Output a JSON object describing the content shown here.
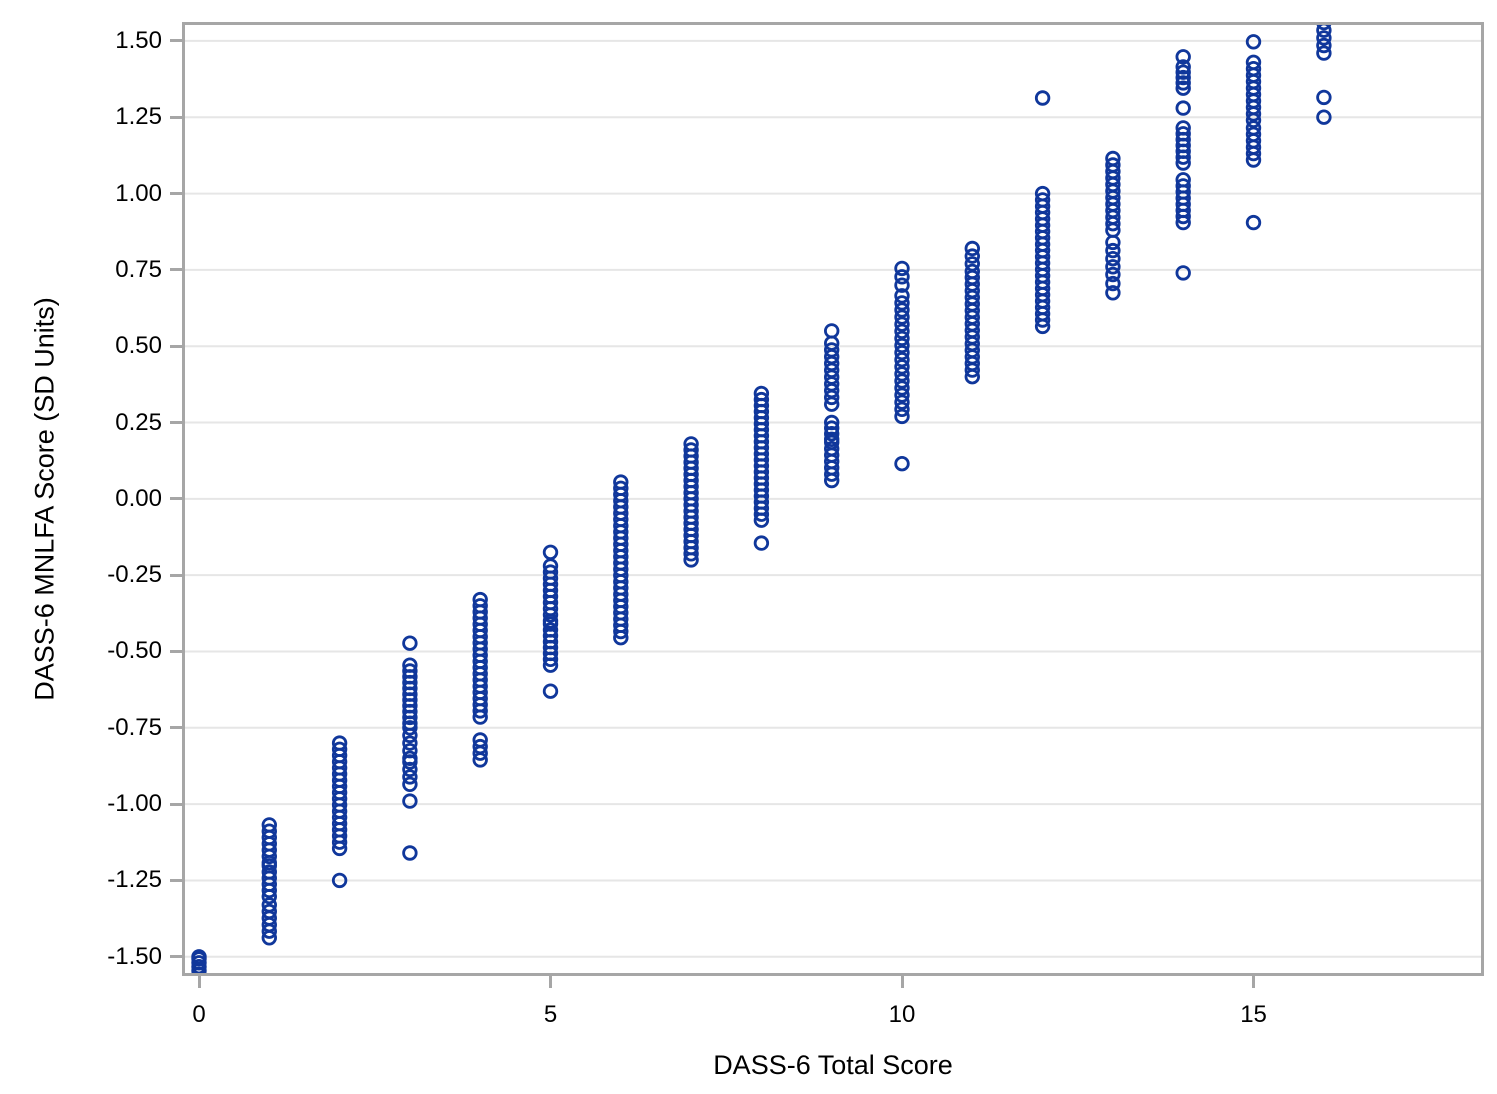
{
  "chart_data": {
    "type": "scatter",
    "title": "",
    "xlabel": "DASS-6 Total Score",
    "ylabel": "DASS-6 MNLFA Score (SD Units)",
    "xlim": [
      -0.242,
      18.278
    ],
    "ylim": [
      -1.563,
      1.562
    ],
    "x_ticks": [
      0,
      5,
      10,
      15
    ],
    "x_tick_labels": [
      "0",
      "5",
      "10",
      "15"
    ],
    "y_ticks": [
      1.5,
      1.25,
      1.0,
      0.75,
      0.5,
      0.25,
      0.0,
      -0.25,
      -0.5,
      -0.75,
      -1.0,
      -1.25,
      -1.5
    ],
    "y_tick_labels": [
      "1.50",
      "1.25",
      "1.00",
      "0.75",
      "0.50",
      "0.25",
      "0.00",
      "-0.25",
      "-0.50",
      "-0.75",
      "-1.00",
      "-1.25",
      "-1.50"
    ],
    "grid": "horizontal-only",
    "legend": "none",
    "marker": {
      "shape": "open-circle",
      "color": "#10379B",
      "radius_px": 6.3,
      "stroke_px": 2.8
    },
    "panel": {
      "background": "#FFFFFF",
      "grid_color": "#E6E6E6",
      "border_color": "#A6A6A6",
      "tick_color": "#A6A6A6"
    },
    "series_note": "Columns of overlapping open circles at each integer DASS-6 total score; clusters are [vTop, vBottom, count] ranges of MNLFA scores (SD units), points are isolated values.",
    "series": [
      {
        "x": 0,
        "points": [
          -1.5
        ],
        "clusters": [
          [
            -1.507,
            -1.558,
            5
          ]
        ]
      },
      {
        "x": 1,
        "points": [],
        "clusters": [
          [
            -1.068,
            -1.192,
            7
          ],
          [
            -1.202,
            -1.303,
            6
          ],
          [
            -1.33,
            -1.438,
            6
          ]
        ]
      },
      {
        "x": 2,
        "points": [
          -1.25
        ],
        "clusters": [
          [
            -0.8,
            -1.145,
            18
          ]
        ]
      },
      {
        "x": 3,
        "points": [
          -0.473,
          -0.99,
          -1.16
        ],
        "clusters": [
          [
            -0.545,
            -0.735,
            11
          ],
          [
            -0.75,
            -0.85,
            5
          ],
          [
            -0.862,
            -0.935,
            4
          ]
        ]
      },
      {
        "x": 4,
        "points": [],
        "clusters": [
          [
            -0.33,
            -0.715,
            20
          ],
          [
            -0.79,
            -0.855,
            4
          ]
        ]
      },
      {
        "x": 5,
        "points": [
          -0.175,
          -0.63
        ],
        "clusters": [
          [
            -0.22,
            -0.4,
            10
          ],
          [
            -0.41,
            -0.545,
            8
          ]
        ]
      },
      {
        "x": 6,
        "points": [],
        "clusters": [
          [
            0.055,
            -0.455,
            26
          ]
        ]
      },
      {
        "x": 7,
        "points": [],
        "clusters": [
          [
            0.18,
            -0.2,
            20
          ]
        ]
      },
      {
        "x": 8,
        "points": [
          -0.145
        ],
        "clusters": [
          [
            0.345,
            -0.07,
            22
          ]
        ]
      },
      {
        "x": 9,
        "points": [
          0.55
        ],
        "clusters": [
          [
            0.51,
            0.31,
            10
          ],
          [
            0.25,
            0.195,
            4
          ],
          [
            0.185,
            0.06,
            7
          ]
        ]
      },
      {
        "x": 10,
        "points": [
          0.115
        ],
        "clusters": [
          [
            0.755,
            0.7,
            3
          ],
          [
            0.665,
            0.27,
            18
          ]
        ]
      },
      {
        "x": 11,
        "points": [],
        "clusters": [
          [
            0.82,
            0.745,
            4
          ],
          [
            0.725,
            0.4,
            16
          ]
        ]
      },
      {
        "x": 12,
        "points": [
          1.313
        ],
        "clusters": [
          [
            1.0,
            0.565,
            22
          ]
        ]
      },
      {
        "x": 13,
        "points": [],
        "clusters": [
          [
            1.115,
            0.88,
            12
          ],
          [
            0.84,
            0.76,
            4
          ],
          [
            0.735,
            0.675,
            3
          ]
        ]
      },
      {
        "x": 14,
        "points": [
          1.448,
          1.28,
          0.74
        ],
        "clusters": [
          [
            1.415,
            1.345,
            5
          ],
          [
            1.215,
            1.1,
            7
          ],
          [
            1.045,
            0.905,
            8
          ]
        ]
      },
      {
        "x": 15,
        "points": [
          1.497,
          0.905
        ],
        "clusters": [
          [
            1.43,
            1.24,
            10
          ],
          [
            1.215,
            1.11,
            6
          ]
        ]
      },
      {
        "x": 16,
        "points": [
          1.315,
          1.25
        ],
        "clusters": [
          [
            1.56,
            1.46,
            5
          ]
        ]
      }
    ]
  }
}
